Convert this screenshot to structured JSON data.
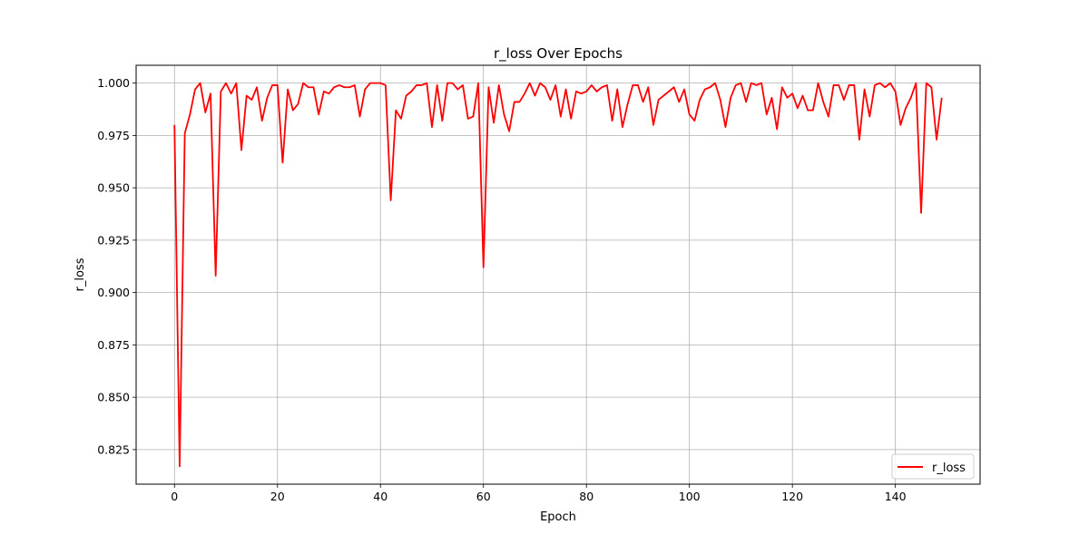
{
  "chart_data": {
    "type": "line",
    "title": "r_loss Over Epochs",
    "xlabel": "Epoch",
    "ylabel": "r_loss",
    "xlim": [
      -7.45,
      156.45
    ],
    "ylim": [
      0.8085,
      1.0085
    ],
    "xticks": [
      0,
      20,
      40,
      60,
      80,
      100,
      120,
      140
    ],
    "xtick_labels": [
      "0",
      "20",
      "40",
      "60",
      "80",
      "100",
      "120",
      "140"
    ],
    "yticks": [
      0.825,
      0.85,
      0.875,
      0.9,
      0.925,
      0.95,
      0.975,
      1.0
    ],
    "ytick_labels": [
      "0.825",
      "0.850",
      "0.875",
      "0.900",
      "0.925",
      "0.950",
      "0.975",
      "1.000"
    ],
    "grid": true,
    "legend_position": "bottom-right",
    "series": [
      {
        "name": "r_loss",
        "color": "#ff0000",
        "x": [
          0,
          1,
          2,
          3,
          4,
          5,
          6,
          7,
          8,
          9,
          10,
          11,
          12,
          13,
          14,
          15,
          16,
          17,
          18,
          19,
          20,
          21,
          22,
          23,
          24,
          25,
          26,
          27,
          28,
          29,
          30,
          31,
          32,
          33,
          34,
          35,
          36,
          37,
          38,
          39,
          40,
          41,
          42,
          43,
          44,
          45,
          46,
          47,
          48,
          49,
          50,
          51,
          52,
          53,
          54,
          55,
          56,
          57,
          58,
          59,
          60,
          61,
          62,
          63,
          64,
          65,
          66,
          67,
          68,
          69,
          70,
          71,
          72,
          73,
          74,
          75,
          76,
          77,
          78,
          79,
          80,
          81,
          82,
          83,
          84,
          85,
          86,
          87,
          88,
          89,
          90,
          91,
          92,
          93,
          94,
          95,
          96,
          97,
          98,
          99,
          100,
          101,
          102,
          103,
          104,
          105,
          106,
          107,
          108,
          109,
          110,
          111,
          112,
          113,
          114,
          115,
          116,
          117,
          118,
          119,
          120,
          121,
          122,
          123,
          124,
          125,
          126,
          127,
          128,
          129,
          130,
          131,
          132,
          133,
          134,
          135,
          136,
          137,
          138,
          139,
          140,
          141,
          142,
          143,
          144,
          145,
          146,
          147,
          148,
          149
        ],
        "values": [
          0.98,
          0.817,
          0.976,
          0.985,
          0.997,
          1.0,
          0.986,
          0.995,
          0.908,
          0.996,
          1.0,
          0.995,
          1.0,
          0.968,
          0.994,
          0.992,
          0.998,
          0.982,
          0.993,
          0.999,
          0.999,
          0.962,
          0.997,
          0.987,
          0.99,
          1.0,
          0.998,
          0.998,
          0.985,
          0.996,
          0.995,
          0.998,
          0.999,
          0.998,
          0.998,
          0.999,
          0.984,
          0.997,
          1.0,
          1.0,
          1.0,
          0.999,
          0.944,
          0.987,
          0.983,
          0.994,
          0.996,
          0.999,
          0.999,
          1.0,
          0.979,
          0.999,
          0.982,
          1.0,
          1.0,
          0.997,
          0.999,
          0.983,
          0.984,
          1.0,
          0.912,
          0.998,
          0.981,
          0.999,
          0.985,
          0.977,
          0.991,
          0.991,
          0.995,
          1.0,
          0.994,
          1.0,
          0.998,
          0.992,
          0.999,
          0.984,
          0.997,
          0.983,
          0.996,
          0.995,
          0.996,
          0.999,
          0.996,
          0.998,
          0.999,
          0.982,
          0.997,
          0.979,
          0.99,
          0.999,
          0.999,
          0.991,
          0.998,
          0.98,
          0.992,
          0.994,
          0.996,
          0.998,
          0.991,
          0.997,
          0.985,
          0.982,
          0.992,
          0.997,
          0.998,
          1.0,
          0.992,
          0.979,
          0.993,
          0.999,
          1.0,
          0.991,
          1.0,
          0.999,
          1.0,
          0.985,
          0.993,
          0.978,
          0.998,
          0.993,
          0.995,
          0.988,
          0.994,
          0.987,
          0.987,
          1.0,
          0.991,
          0.984,
          0.999,
          0.999,
          0.992,
          0.999,
          0.999,
          0.973,
          0.997,
          0.984,
          0.999,
          1.0,
          0.998,
          1.0,
          0.996,
          0.98,
          0.988,
          0.993,
          1.0,
          0.938,
          1.0,
          0.998,
          0.973,
          0.993
        ]
      }
    ]
  }
}
